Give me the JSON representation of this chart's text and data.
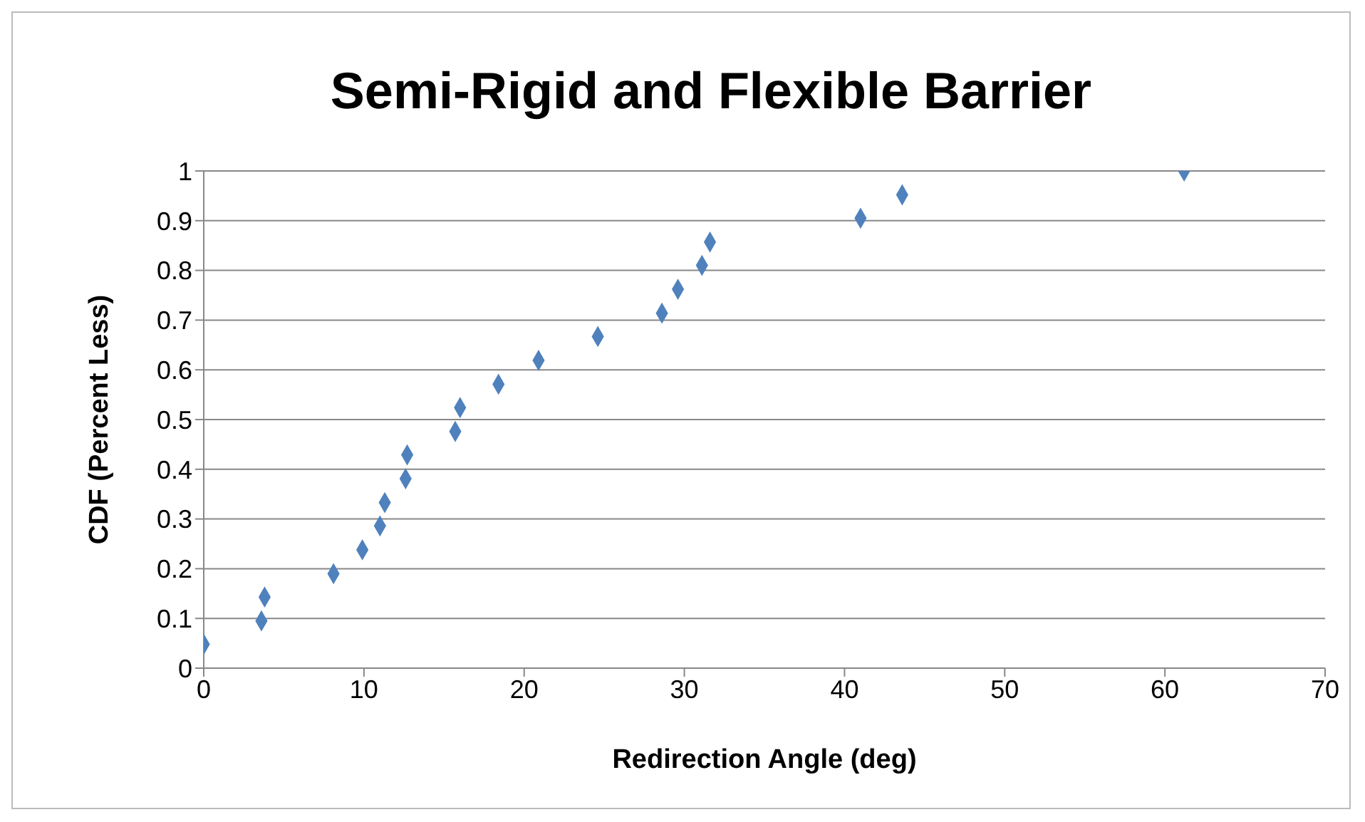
{
  "chart_data": {
    "type": "scatter",
    "title": "Semi-Rigid  and Flexible Barrier",
    "xlabel": "Redirection Angle (deg)",
    "ylabel": "CDF  (Percent Less)",
    "x": [
      0,
      3.6,
      3.8,
      8.1,
      9.9,
      11.0,
      11.3,
      12.6,
      12.7,
      15.7,
      16.0,
      18.4,
      20.9,
      24.6,
      28.6,
      29.6,
      31.1,
      31.6,
      41.0,
      43.6,
      61.2
    ],
    "series": [
      {
        "color": "#4f81bd",
        "values": [
          0.048,
          0.095,
          0.143,
          0.19,
          0.238,
          0.286,
          0.333,
          0.381,
          0.429,
          0.476,
          0.524,
          0.571,
          0.619,
          0.667,
          0.714,
          0.762,
          0.81,
          0.857,
          0.905,
          0.952,
          1
        ]
      }
    ],
    "xlim": [
      0,
      70
    ],
    "xticks": [
      0,
      10,
      20,
      30,
      40,
      50,
      60,
      70
    ],
    "ylim": [
      0,
      1
    ],
    "yticks": [
      0,
      0.1,
      0.2,
      0.3,
      0.4,
      0.5,
      0.6,
      0.7,
      0.8,
      0.9,
      1
    ],
    "grid": "y",
    "legend": false,
    "marker": "diamond"
  }
}
